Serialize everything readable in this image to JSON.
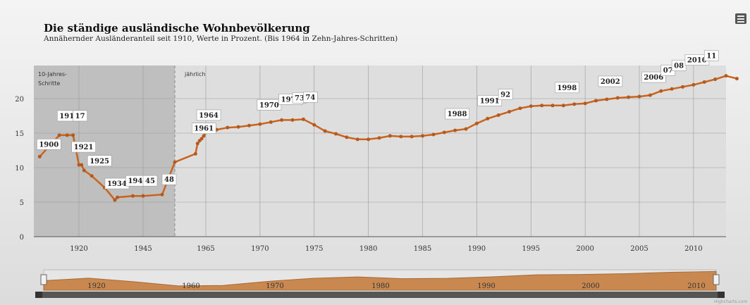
{
  "title": "Die ständige ausländische Wohnbevölkerung",
  "subtitle": "Annähernder Ausländeranteil seit 1910, Werte in Prozent. (Bis 1964 in Zehn-Jahres-Schritten)",
  "menu_icon": "hamburger-menu-icon",
  "credits": "Highcharts.com",
  "colors": {
    "line": "#c8641e",
    "marker": "#b45a1e",
    "band": "#b4b4b4",
    "navigator_fill": "#c9884f",
    "grid": "#9a9a9a"
  },
  "chart_data": {
    "type": "line",
    "title": "Die ständige ausländische Wohnbevölkerung",
    "subtitle": "Annähernder Ausländeranteil seit 1910, Werte in Prozent. (Bis 1964 in Zehn-Jahres-Schritten)",
    "ylim": [
      0,
      25
    ],
    "y_ticks": [
      "0",
      "5",
      "10",
      "15",
      "20"
    ],
    "x_ticks": [
      "1920",
      "1945",
      "1965",
      "1970",
      "1975",
      "1980",
      "1985",
      "1990",
      "1995",
      "2000",
      "2005",
      "2010"
    ],
    "grid": true,
    "bands": [
      {
        "label": "10-Jahres-Schritte"
      },
      {
        "label": "jährlich"
      }
    ],
    "series": [
      {
        "points": [
          [
            "1900",
            11.6
          ],
          [
            "1910",
            14.7
          ],
          [
            "1914",
            14.7
          ],
          [
            "1917",
            14.7
          ],
          [
            "1920",
            10.4
          ],
          [
            "1921",
            10.4
          ],
          [
            "1922",
            9.6
          ],
          [
            "1925",
            8.8
          ],
          [
            "1930",
            7.1
          ],
          [
            "1934",
            5.3
          ],
          [
            "1935",
            5.7
          ],
          [
            "1941",
            5.9
          ],
          [
            "1945",
            5.9
          ],
          [
            "1948",
            6.1
          ],
          [
            "1950",
            10.8
          ],
          [
            "1960",
            12.0
          ],
          [
            "1961",
            13.5
          ],
          [
            "1962",
            13.9
          ],
          [
            "1963",
            14.2
          ],
          [
            "1964",
            14.6
          ],
          [
            "1965",
            15.1
          ],
          [
            "1966",
            15.5
          ],
          [
            "1967",
            15.8
          ],
          [
            "1968",
            15.9
          ],
          [
            "1969",
            16.1
          ],
          [
            "1970",
            16.3
          ],
          [
            "1971",
            16.6
          ],
          [
            "1972",
            16.9
          ],
          [
            "1973",
            16.9
          ],
          [
            "1974",
            17.0
          ],
          [
            "1975",
            16.2
          ],
          [
            "1976",
            15.3
          ],
          [
            "1977",
            14.9
          ],
          [
            "1978",
            14.4
          ],
          [
            "1979",
            14.1
          ],
          [
            "1980",
            14.1
          ],
          [
            "1981",
            14.3
          ],
          [
            "1982",
            14.6
          ],
          [
            "1983",
            14.5
          ],
          [
            "1984",
            14.5
          ],
          [
            "1985",
            14.6
          ],
          [
            "1986",
            14.8
          ],
          [
            "1987",
            15.1
          ],
          [
            "1988",
            15.4
          ],
          [
            "1989",
            15.6
          ],
          [
            "1990",
            16.4
          ],
          [
            "1991",
            17.1
          ],
          [
            "1992",
            17.6
          ],
          [
            "1993",
            18.1
          ],
          [
            "1994",
            18.6
          ],
          [
            "1995",
            18.9
          ],
          [
            "1996",
            19.0
          ],
          [
            "1997",
            19.0
          ],
          [
            "1998",
            19.0
          ],
          [
            "1999",
            19.2
          ],
          [
            "2000",
            19.3
          ],
          [
            "2001",
            19.7
          ],
          [
            "2002",
            19.9
          ],
          [
            "2003",
            20.1
          ],
          [
            "2004",
            20.2
          ],
          [
            "2005",
            20.3
          ],
          [
            "2006",
            20.5
          ],
          [
            "2007",
            21.1
          ],
          [
            "2008",
            21.4
          ],
          [
            "2009",
            21.7
          ],
          [
            "2010",
            22.0
          ],
          [
            "2011",
            22.4
          ],
          [
            "2012",
            22.8
          ],
          [
            "2013",
            23.3
          ],
          [
            "2014",
            22.9
          ]
        ]
      }
    ],
    "annotations": [
      {
        "label": "1900",
        "year": "1900"
      },
      {
        "label": "1914",
        "year": "1914"
      },
      {
        "label": "17",
        "year": "1917"
      },
      {
        "label": "1921",
        "year": "1921"
      },
      {
        "label": "1925",
        "year": "1925"
      },
      {
        "label": "1934",
        "year": "1934"
      },
      {
        "label": "1941",
        "year": "1941"
      },
      {
        "label": "45",
        "year": "1945"
      },
      {
        "label": "48",
        "year": "1948"
      },
      {
        "label": "1961",
        "year": "1961"
      },
      {
        "label": "1964",
        "year": "1964"
      },
      {
        "label": "1970",
        "year": "1970"
      },
      {
        "label": "1972",
        "year": "1972"
      },
      {
        "label": "73",
        "year": "1973"
      },
      {
        "label": "74",
        "year": "1974"
      },
      {
        "label": "1988",
        "year": "1988"
      },
      {
        "label": "1991",
        "year": "1991"
      },
      {
        "label": "92",
        "year": "1992"
      },
      {
        "label": "1998",
        "year": "1998"
      },
      {
        "label": "2002",
        "year": "2002"
      },
      {
        "label": "2006",
        "year": "2006"
      },
      {
        "label": "07",
        "year": "2007"
      },
      {
        "label": "08",
        "year": "2008"
      },
      {
        "label": "2010",
        "year": "2010"
      },
      {
        "label": "11",
        "year": "2011"
      }
    ],
    "navigator": {
      "labels": [
        "1920",
        "1960",
        "1970",
        "1980",
        "1990",
        "2000",
        "2010"
      ],
      "series_values": [
        11.6,
        14.7,
        10.4,
        5.3,
        5.9,
        10.8,
        14.6,
        16.3,
        14.1,
        14.6,
        16.4,
        18.9,
        19.3,
        20.3,
        22.0,
        22.9
      ]
    }
  }
}
